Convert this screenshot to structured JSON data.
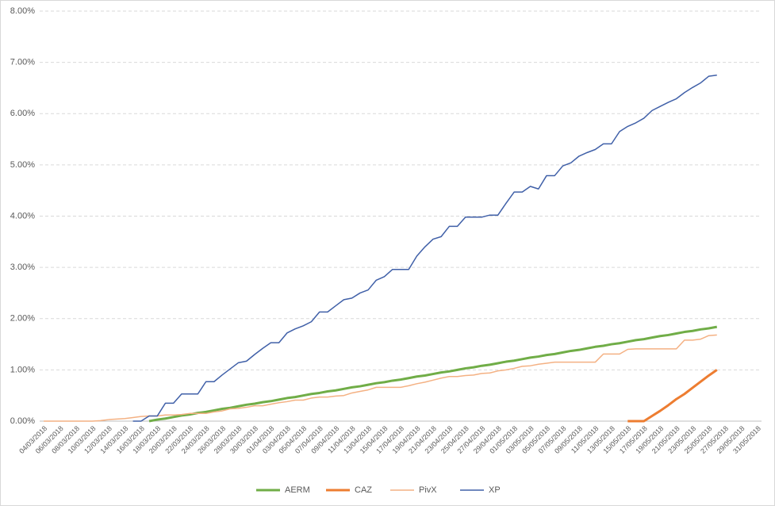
{
  "chart_data": {
    "type": "line",
    "categories": [
      "04/03/2018",
      null,
      "06/03/2018",
      null,
      "08/03/2018",
      null,
      "10/03/2018",
      null,
      "12/03/2018",
      null,
      "14/03/2018",
      null,
      "16/03/2018",
      null,
      "18/03/2018",
      null,
      "20/03/2018",
      null,
      "22/03/2018",
      null,
      "24/03/2018",
      null,
      "26/03/2018",
      null,
      "28/03/2018",
      null,
      "30/03/2018",
      null,
      "01/04/2018",
      null,
      "03/04/2018",
      null,
      "05/04/2018",
      null,
      "07/04/2018",
      null,
      "09/04/2018",
      null,
      "11/04/2018",
      null,
      "13/04/2018",
      null,
      "15/04/2018",
      null,
      "17/04/2018",
      null,
      "19/04/2018",
      null,
      "21/04/2018",
      null,
      "23/04/2018",
      null,
      "25/04/2018",
      null,
      "27/04/2018",
      null,
      "29/04/2018",
      null,
      "01/05/2018",
      null,
      "03/05/2018",
      null,
      "05/05/2018",
      null,
      "07/05/2018",
      null,
      "09/05/2018",
      null,
      "11/05/2018",
      null,
      "13/05/2018",
      null,
      "15/05/2018",
      null,
      "17/05/2018",
      null,
      "19/05/2018",
      null,
      "21/05/2018",
      null,
      "23/05/2018",
      null,
      "25/05/2018",
      null,
      "27/05/2018",
      null,
      "29/05/2018",
      null,
      "31/05/2018"
    ],
    "series": [
      {
        "name": "AERM",
        "color": "#70ad47",
        "line_width": 3,
        "values": [
          null,
          null,
          null,
          null,
          null,
          null,
          null,
          null,
          null,
          null,
          null,
          null,
          null,
          0.0,
          0.03,
          0.05,
          0.08,
          0.11,
          0.13,
          0.16,
          0.18,
          0.21,
          0.24,
          0.26,
          0.29,
          0.32,
          0.34,
          0.37,
          0.39,
          0.42,
          0.45,
          0.47,
          0.5,
          0.53,
          0.55,
          0.58,
          0.6,
          0.63,
          0.66,
          0.68,
          0.71,
          0.74,
          0.76,
          0.79,
          0.81,
          0.84,
          0.87,
          0.89,
          0.92,
          0.95,
          0.97,
          1.0,
          1.03,
          1.05,
          1.08,
          1.1,
          1.13,
          1.16,
          1.18,
          1.21,
          1.24,
          1.26,
          1.29,
          1.31,
          1.34,
          1.37,
          1.39,
          1.42,
          1.45,
          1.47,
          1.5,
          1.52,
          1.55,
          1.58,
          1.6,
          1.63,
          1.66,
          1.68,
          1.71,
          1.74,
          1.76,
          1.79,
          1.81,
          1.84,
          null,
          null,
          null,
          null,
          null
        ]
      },
      {
        "name": "CAZ",
        "color": "#ed7d31",
        "line_width": 3,
        "values": [
          null,
          null,
          null,
          null,
          null,
          null,
          null,
          null,
          null,
          null,
          null,
          null,
          null,
          null,
          null,
          null,
          null,
          null,
          null,
          null,
          null,
          null,
          null,
          null,
          null,
          null,
          null,
          null,
          null,
          null,
          null,
          null,
          null,
          null,
          null,
          null,
          null,
          null,
          null,
          null,
          null,
          null,
          null,
          null,
          null,
          null,
          null,
          null,
          null,
          null,
          null,
          null,
          null,
          null,
          null,
          null,
          null,
          null,
          null,
          null,
          null,
          null,
          null,
          null,
          null,
          null,
          null,
          null,
          null,
          null,
          null,
          null,
          0,
          0,
          0,
          0.1,
          0.2,
          0.31,
          0.43,
          0.53,
          0.65,
          0.77,
          0.89,
          1.0,
          null,
          null,
          null,
          null,
          null
        ]
      },
      {
        "name": "PivX",
        "color": "#f4b183",
        "line_width": 1.5,
        "values": [
          0,
          0,
          0,
          0,
          0,
          0,
          0,
          0.01,
          0.03,
          0.04,
          0.05,
          0.07,
          0.09,
          0.1,
          0.1,
          0.12,
          0.12,
          0.13,
          0.15,
          0.15,
          0.15,
          0.18,
          0.2,
          0.24,
          0.25,
          0.27,
          0.3,
          0.3,
          0.33,
          0.36,
          0.38,
          0.41,
          0.41,
          0.45,
          0.47,
          0.47,
          0.49,
          0.5,
          0.55,
          0.58,
          0.61,
          0.66,
          0.66,
          0.66,
          0.66,
          0.69,
          0.73,
          0.76,
          0.8,
          0.84,
          0.87,
          0.87,
          0.89,
          0.9,
          0.93,
          0.94,
          0.98,
          1.0,
          1.03,
          1.07,
          1.08,
          1.11,
          1.13,
          1.15,
          1.15,
          1.15,
          1.15,
          1.15,
          1.15,
          1.31,
          1.31,
          1.31,
          1.4,
          1.41,
          1.41,
          1.41,
          1.41,
          1.41,
          1.41,
          1.58,
          1.58,
          1.6,
          1.67,
          1.68,
          null,
          null,
          null,
          null,
          null
        ]
      },
      {
        "name": "XP",
        "color": "#4060a8",
        "line_width": 1.5,
        "values": [
          null,
          null,
          null,
          null,
          null,
          null,
          null,
          null,
          null,
          null,
          null,
          0,
          0,
          0.1,
          0.1,
          0.35,
          0.35,
          0.53,
          0.53,
          0.53,
          0.77,
          0.77,
          0.9,
          1.02,
          1.14,
          1.17,
          1.3,
          1.42,
          1.53,
          1.53,
          1.72,
          1.8,
          1.86,
          1.94,
          2.13,
          2.13,
          2.25,
          2.37,
          2.4,
          2.5,
          2.56,
          2.75,
          2.82,
          2.96,
          2.96,
          2.96,
          3.22,
          3.4,
          3.55,
          3.6,
          3.8,
          3.8,
          3.98,
          3.98,
          3.98,
          4.02,
          4.02,
          4.25,
          4.47,
          4.47,
          4.58,
          4.53,
          4.79,
          4.79,
          4.98,
          5.04,
          5.17,
          5.24,
          5.3,
          5.41,
          5.41,
          5.65,
          5.75,
          5.82,
          5.91,
          6.06,
          6.14,
          6.22,
          6.29,
          6.41,
          6.51,
          6.6,
          6.73,
          6.75,
          null,
          null,
          null,
          null,
          null
        ]
      }
    ],
    "ylim": [
      0,
      8
    ],
    "yticks": [
      {
        "value": 0,
        "label": "0.00%"
      },
      {
        "value": 1,
        "label": "1.00%"
      },
      {
        "value": 2,
        "label": "2.00%"
      },
      {
        "value": 3,
        "label": "3.00%"
      },
      {
        "value": 4,
        "label": "4.00%"
      },
      {
        "value": 5,
        "label": "5.00%"
      },
      {
        "value": 6,
        "label": "6.00%"
      },
      {
        "value": 7,
        "label": "7.00%"
      },
      {
        "value": 8,
        "label": "8.00%"
      }
    ],
    "grid": true,
    "legend": "bottom"
  }
}
